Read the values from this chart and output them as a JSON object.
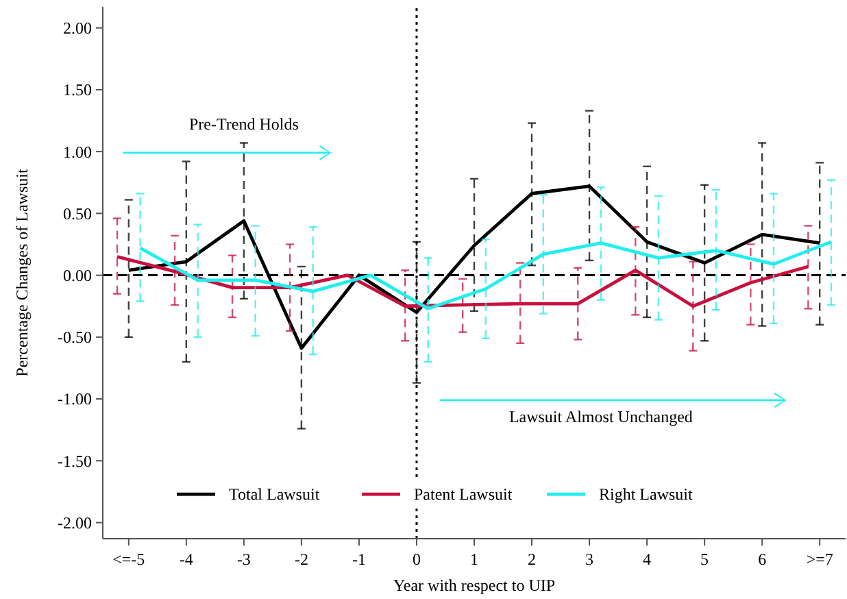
{
  "chart_data": {
    "type": "line",
    "xlabel": "Year with respect to UIP",
    "ylabel": "Percentage Changes of Lawsuit",
    "xlim": [
      -5.45,
      7.45
    ],
    "ylim": [
      -2.13,
      2.17
    ],
    "xticks": [
      {
        "value": -5,
        "label": "<=-5"
      },
      -4,
      -3,
      -2,
      -1,
      0,
      1,
      2,
      3,
      4,
      5,
      6,
      {
        "value": 7,
        "label": ">=7"
      }
    ],
    "yticks": [
      {
        "value": -2,
        "label": "-2.00"
      },
      {
        "value": -1.5,
        "label": "-1.50"
      },
      {
        "value": -1,
        "label": "-1.00"
      },
      {
        "value": -0.5,
        "label": "-0.50"
      },
      {
        "value": 0,
        "label": "0.00"
      },
      {
        "value": 0.5,
        "label": "0.50"
      },
      {
        "value": 1,
        "label": "1.00"
      },
      {
        "value": 1.5,
        "label": "1.50"
      },
      {
        "value": 2,
        "label": "2.00"
      }
    ],
    "series": [
      {
        "name": "Total Lawsuit",
        "color": "#000000",
        "x": [
          -5,
          -4,
          -3,
          -2,
          -1,
          0,
          1,
          2,
          3,
          4,
          5,
          6,
          7
        ],
        "values": [
          0.04,
          0.11,
          0.44,
          -0.59,
          0,
          -0.3,
          0.24,
          0.66,
          0.72,
          0.27,
          0.1,
          0.33,
          0.26
        ],
        "errors": [
          [
            -0.5,
            0.61
          ],
          [
            -0.7,
            0.92
          ],
          [
            -0.19,
            1.07
          ],
          [
            -1.24,
            0.07
          ],
          null,
          [
            -0.87,
            0.27
          ],
          [
            -0.29,
            0.78
          ],
          [
            0.08,
            1.23
          ],
          [
            0.12,
            1.33
          ],
          [
            -0.34,
            0.88
          ],
          [
            -0.53,
            0.73
          ],
          [
            -0.41,
            1.07
          ],
          [
            -0.4,
            0.91
          ]
        ]
      },
      {
        "name": "Patent Lawsuit",
        "color": "#c8103e",
        "x": [
          -5.2,
          -4.2,
          -3.2,
          -2.2,
          -1.2,
          -0.2,
          0.8,
          1.8,
          2.8,
          3.8,
          4.8,
          5.8,
          6.8
        ],
        "values": [
          0.15,
          0.03,
          -0.1,
          -0.1,
          0,
          -0.25,
          -0.24,
          -0.23,
          -0.23,
          0.04,
          -0.25,
          -0.06,
          0.07
        ],
        "errors": [
          [
            -0.15,
            0.46
          ],
          [
            -0.24,
            0.32
          ],
          [
            -0.34,
            0.16
          ],
          [
            -0.45,
            0.25
          ],
          null,
          [
            -0.53,
            0.04
          ],
          [
            -0.46,
            -0.03
          ],
          [
            -0.55,
            0.1
          ],
          [
            -0.52,
            0.06
          ],
          [
            -0.32,
            0.39
          ],
          [
            -0.61,
            0.11
          ],
          [
            -0.4,
            0.25
          ],
          [
            -0.27,
            0.4
          ]
        ]
      },
      {
        "name": "Right Lawsuit",
        "color": "#22eeee",
        "x": [
          -4.8,
          -3.8,
          -2.8,
          -1.8,
          -0.8,
          0.2,
          1.2,
          2.2,
          3.2,
          4.2,
          5.2,
          6.2,
          7.2
        ],
        "values": [
          0.22,
          -0.04,
          -0.04,
          -0.13,
          0,
          -0.27,
          -0.11,
          0.17,
          0.26,
          0.14,
          0.2,
          0.09,
          0.27
        ],
        "errors": [
          [
            -0.21,
            0.66
          ],
          [
            -0.5,
            0.41
          ],
          [
            -0.49,
            0.4
          ],
          [
            -0.64,
            0.39
          ],
          null,
          [
            -0.7,
            0.14
          ],
          [
            -0.51,
            0.29
          ],
          [
            -0.31,
            0.65
          ],
          [
            -0.2,
            0.71
          ],
          [
            -0.36,
            0.64
          ],
          [
            -0.28,
            0.69
          ],
          [
            -0.39,
            0.66
          ],
          [
            -0.24,
            0.77
          ]
        ]
      }
    ],
    "ref_lines": [
      {
        "axis": "y",
        "value": 0,
        "line_style": "dashed",
        "color": "#000000"
      },
      {
        "axis": "x",
        "value": 0,
        "line_style": "dotted",
        "color": "#000000"
      }
    ],
    "annotations": [
      "Pre-Trend Holds",
      "Lawsuit Almost Unchanged"
    ],
    "legend": "bottom",
    "grid": false,
    "marker": "none",
    "line_style": "solid"
  }
}
